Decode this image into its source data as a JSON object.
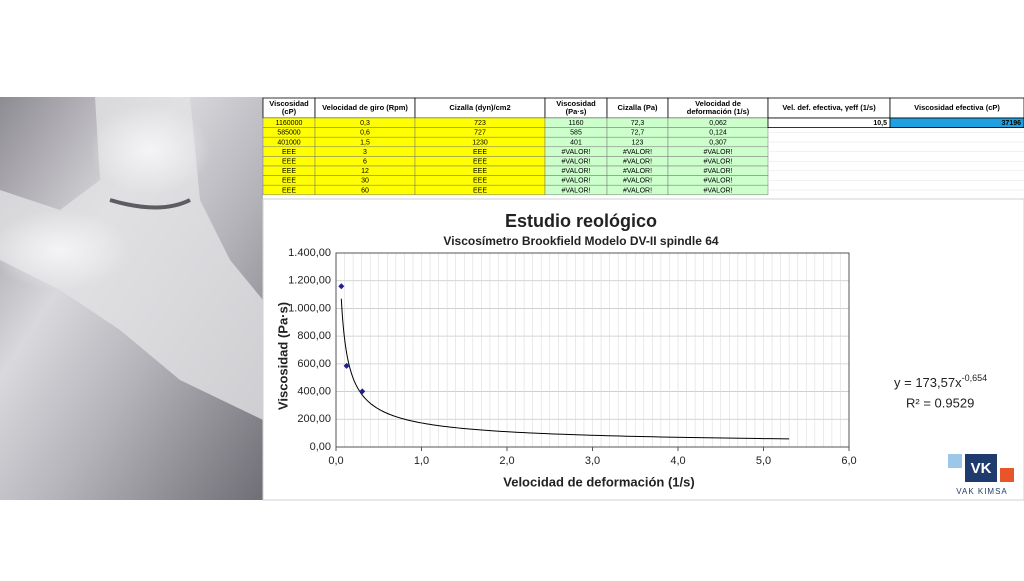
{
  "table": {
    "headers": [
      "Viscosidad\n(cP)",
      "Velocidad de giro (Rpm)",
      "Cizalla (dyn)/cm2",
      "Viscosidad\n(Pa·s)",
      "Cizalla (Pa)",
      "Velocidad de\ndeformación (1/s)"
    ],
    "rows": [
      [
        "1160000",
        "0,3",
        "723",
        "1160",
        "72,3",
        "0,062"
      ],
      [
        "585000",
        "0,6",
        "727",
        "585",
        "72,7",
        "0,124"
      ],
      [
        "401000",
        "1,5",
        "1230",
        "401",
        "123",
        "0,307"
      ],
      [
        "EEE",
        "3",
        "EEE",
        "#VALOR!",
        "#VALOR!",
        "#VALOR!"
      ],
      [
        "EEE",
        "6",
        "EEE",
        "#VALOR!",
        "#VALOR!",
        "#VALOR!"
      ],
      [
        "EEE",
        "12",
        "EEE",
        "#VALOR!",
        "#VALOR!",
        "#VALOR!"
      ],
      [
        "EEE",
        "30",
        "EEE",
        "#VALOR!",
        "#VALOR!",
        "#VALOR!"
      ],
      [
        "EEE",
        "60",
        "EEE",
        "#VALOR!",
        "#VALOR!",
        "#VALOR!"
      ]
    ]
  },
  "effective": {
    "headers": [
      "Vel. def. efectiva, γeff (1/s)",
      "Viscosidad efectiva (cP)"
    ],
    "values": [
      "10,5",
      "37196"
    ]
  },
  "chart_data": {
    "type": "scatter",
    "title": "Estudio reológico",
    "subtitle": "Viscosímetro Brookfield Modelo DV-II spindle 64",
    "x_label": "Velocidad de deformación (1/s)",
    "y_label": "Viscosidad (Pa·s)",
    "x": [
      0.062,
      0.124,
      0.307
    ],
    "values": [
      1160,
      585,
      401
    ],
    "color": "#1f1f8f",
    "xlim": [
      0,
      6
    ],
    "xticks": [
      {
        "value": 0,
        "label": "0,0"
      },
      {
        "value": 1,
        "label": "1,0"
      },
      {
        "value": 2,
        "label": "2,0"
      },
      {
        "value": 3,
        "label": "3,0"
      },
      {
        "value": 4,
        "label": "4,0"
      },
      {
        "value": 5,
        "label": "5,0"
      },
      {
        "value": 6,
        "label": "6,0"
      }
    ],
    "ylim": [
      0,
      1400
    ],
    "yticks": [
      {
        "value": 0,
        "label": "0,00"
      },
      {
        "value": 200,
        "label": "200,00"
      },
      {
        "value": 400,
        "label": "400,00"
      },
      {
        "value": 600,
        "label": "600,00"
      },
      {
        "value": 800,
        "label": "800,00"
      },
      {
        "value": 1000,
        "label": "1.000,00"
      },
      {
        "value": 1200,
        "label": "1.200,00"
      },
      {
        "value": 1400,
        "label": "1.400,00"
      }
    ],
    "grid": true,
    "trendline": {
      "coefficient": 173.57,
      "exponent": -0.654,
      "xlim": [
        0.062,
        5.3
      ],
      "equation": "y = 173,57x",
      "exponent_label": "-0,654",
      "r2_label": "R² = 0.9529"
    }
  },
  "logo": {
    "mark": "VK",
    "name": "VAK  KIMSA"
  }
}
